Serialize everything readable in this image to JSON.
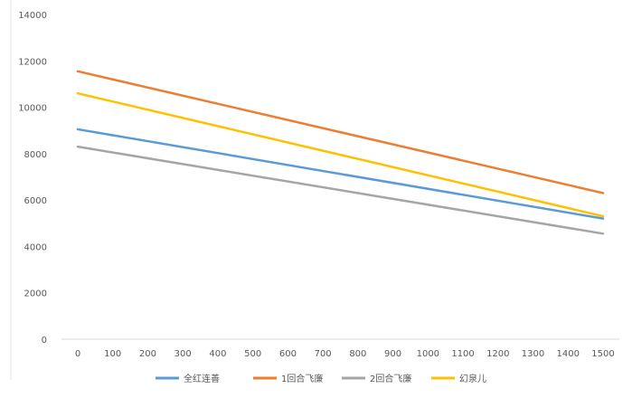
{
  "chart_data": {
    "type": "line",
    "title": "",
    "xlabel": "",
    "ylabel": "",
    "x": [
      0,
      100,
      200,
      300,
      400,
      500,
      600,
      700,
      800,
      900,
      1000,
      1100,
      1200,
      1300,
      1400,
      1500
    ],
    "xlim": [
      0,
      1500
    ],
    "ylim": [
      0,
      14000
    ],
    "yticks": [
      0,
      2000,
      4000,
      6000,
      8000,
      10000,
      12000,
      14000
    ],
    "grid": false,
    "legend": "bottom",
    "series": [
      {
        "name": "全红连善",
        "color": "#5b9bd5",
        "start": 9050,
        "end": 5200
      },
      {
        "name": "1回合飞廉",
        "color": "#ed7d31",
        "start": 11550,
        "end": 6300
      },
      {
        "name": "2回合飞廉",
        "color": "#a5a5a5",
        "start": 8300,
        "end": 4550
      },
      {
        "name": "幻泉儿",
        "color": "#ffc000",
        "start": 10600,
        "end": 5300
      }
    ]
  }
}
